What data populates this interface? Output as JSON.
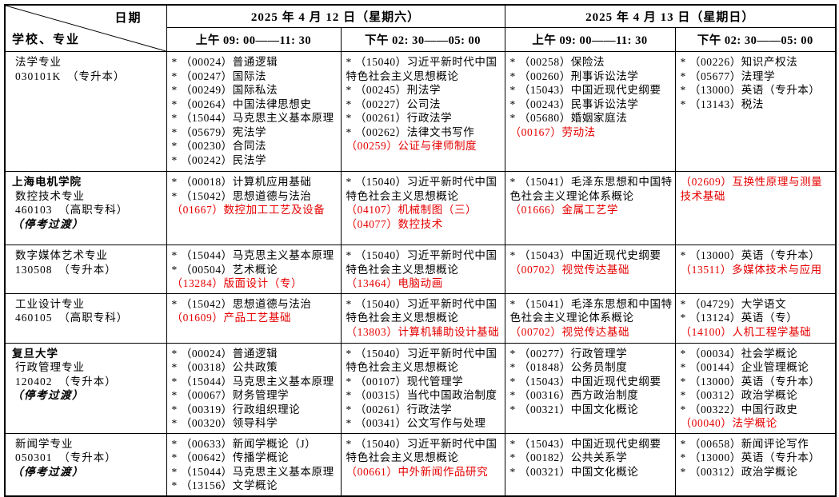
{
  "colors": {
    "accent_red": "#e60000",
    "border": "#000000"
  },
  "header": {
    "corner": {
      "date_label": "日期",
      "school_label": "学校、专业"
    },
    "days": [
      {
        "date": "2025 年 4 月 12 日（星期六）",
        "sessions": [
          "上午 09: 00——11: 30",
          "下午 02: 30——05: 00"
        ]
      },
      {
        "date": "2025 年 4 月 13 日（星期日）",
        "sessions": [
          "上午 09: 00——11: 30",
          "下午 02: 30——05: 00"
        ]
      }
    ]
  },
  "rows": [
    {
      "school_lines": [
        {
          "text": "法学专业",
          "bold": false,
          "em": false,
          "ind": true
        },
        {
          "text": "030101K　（专升本）",
          "bold": false,
          "em": false,
          "ind": true
        }
      ],
      "cells": [
        [
          {
            "star": true,
            "code": "00024",
            "name": "普通逻辑",
            "red": false
          },
          {
            "star": true,
            "code": "00247",
            "name": "国际法",
            "red": false
          },
          {
            "star": true,
            "code": "00249",
            "name": "国际私法",
            "red": false
          },
          {
            "star": true,
            "code": "00264",
            "name": "中国法律思想史",
            "red": false
          },
          {
            "star": true,
            "code": "15044",
            "name": "马克思主义基本原理",
            "red": false
          },
          {
            "star": true,
            "code": "05679",
            "name": "宪法学",
            "red": false
          },
          {
            "star": true,
            "code": "00230",
            "name": "合同法",
            "red": false
          },
          {
            "star": true,
            "code": "00242",
            "name": "民法学",
            "red": false
          }
        ],
        [
          {
            "star": true,
            "code": "15040",
            "name": "习近平新时代中国特色社会主义思想概论",
            "red": false
          },
          {
            "star": true,
            "code": "00245",
            "name": "刑法学",
            "red": false
          },
          {
            "star": true,
            "code": "00227",
            "name": "公司法",
            "red": false
          },
          {
            "star": true,
            "code": "00261",
            "name": "行政法学",
            "red": false
          },
          {
            "star": true,
            "code": "00262",
            "name": "法律文书写作",
            "red": false
          },
          {
            "star": false,
            "code": "00259",
            "name": "公证与律师制度",
            "red": true
          }
        ],
        [
          {
            "star": true,
            "code": "00258",
            "name": "保险法",
            "red": false
          },
          {
            "star": true,
            "code": "00260",
            "name": "刑事诉讼法学",
            "red": false
          },
          {
            "star": true,
            "code": "15043",
            "name": "中国近现代史纲要",
            "red": false
          },
          {
            "star": true,
            "code": "00243",
            "name": "民事诉讼法学",
            "red": false
          },
          {
            "star": true,
            "code": "05680",
            "name": "婚姻家庭法",
            "red": false
          },
          {
            "star": false,
            "code": "00167",
            "name": "劳动法",
            "red": true
          }
        ],
        [
          {
            "star": true,
            "code": "00226",
            "name": "知识产权法",
            "red": false
          },
          {
            "star": true,
            "code": "05677",
            "name": "法理学",
            "red": false
          },
          {
            "star": true,
            "code": "13000",
            "name": "英语（专升本）",
            "red": false
          },
          {
            "star": true,
            "code": "13143",
            "name": "税法",
            "red": false
          }
        ]
      ]
    },
    {
      "school_lines": [
        {
          "text": "上海电机学院",
          "bold": true,
          "em": false,
          "ind": false
        },
        {
          "text": "数控技术专业",
          "bold": false,
          "em": false,
          "ind": true
        },
        {
          "text": "460103　（高职专科）",
          "bold": false,
          "em": false,
          "ind": true
        },
        {
          "text": "（停考过渡）",
          "bold": false,
          "em": true,
          "ind": false
        }
      ],
      "cells": [
        [
          {
            "star": true,
            "code": "00018",
            "name": "计算机应用基础",
            "red": false
          },
          {
            "star": true,
            "code": "15042",
            "name": "思想道德与法治",
            "red": false
          },
          {
            "star": false,
            "code": "01667",
            "name": "数控加工工艺及设备",
            "red": true
          }
        ],
        [
          {
            "star": true,
            "code": "15040",
            "name": "习近平新时代中国特色社会主义思想概论",
            "red": false
          },
          {
            "star": false,
            "code": "04107",
            "name": "机械制图（三）",
            "red": true
          },
          {
            "star": false,
            "code": "04077",
            "name": "数控技术",
            "red": true
          }
        ],
        [
          {
            "star": true,
            "code": "15041",
            "name": "毛泽东思想和中国特色社会主义理论体系概论",
            "red": false
          },
          {
            "star": false,
            "code": "01666",
            "name": "金属工艺学",
            "red": true
          }
        ],
        [
          {
            "star": false,
            "code": "02609",
            "name": "互换性原理与测量技术基础",
            "red": true
          }
        ]
      ]
    },
    {
      "school_lines": [
        {
          "text": "数字媒体艺术专业",
          "bold": false,
          "em": false,
          "ind": true
        },
        {
          "text": "130508　（专升本）",
          "bold": false,
          "em": false,
          "ind": true
        }
      ],
      "cells": [
        [
          {
            "star": true,
            "code": "15044",
            "name": "马克思主义基本原理",
            "red": false
          },
          {
            "star": true,
            "code": "00504",
            "name": "艺术概论",
            "red": false
          },
          {
            "star": false,
            "code": "13284",
            "name": "版面设计（专）",
            "red": true
          }
        ],
        [
          {
            "star": true,
            "code": "15040",
            "name": "习近平新时代中国特色社会主义思想概论",
            "red": false
          },
          {
            "star": false,
            "code": "13464",
            "name": "电脑动画",
            "red": true
          }
        ],
        [
          {
            "star": true,
            "code": "15043",
            "name": "中国近现代史纲要",
            "red": false
          },
          {
            "star": false,
            "code": "00702",
            "name": "视觉传达基础",
            "red": true
          }
        ],
        [
          {
            "star": true,
            "code": "13000",
            "name": "英语（专升本）",
            "red": false
          },
          {
            "star": false,
            "code": "13511",
            "name": "多媒体技术与应用",
            "red": true
          }
        ]
      ]
    },
    {
      "school_lines": [
        {
          "text": "工业设计专业",
          "bold": false,
          "em": false,
          "ind": true
        },
        {
          "text": "460105　（高职专科）",
          "bold": false,
          "em": false,
          "ind": true
        }
      ],
      "cells": [
        [
          {
            "star": true,
            "code": "15042",
            "name": "思想道德与法治",
            "red": false
          },
          {
            "star": false,
            "code": "01609",
            "name": "产品工艺基础",
            "red": true
          }
        ],
        [
          {
            "star": true,
            "code": "15040",
            "name": "习近平新时代中国特色社会主义思想概论",
            "red": false
          },
          {
            "star": false,
            "code": "13803",
            "name": "计算机辅助设计基础",
            "red": true
          }
        ],
        [
          {
            "star": true,
            "code": "15041",
            "name": "毛泽东思想和中国特色社会主义理论体系概论",
            "red": false
          },
          {
            "star": false,
            "code": "00702",
            "name": "视觉传达基础",
            "red": true
          }
        ],
        [
          {
            "star": true,
            "code": "04729",
            "name": "大学语文",
            "red": false
          },
          {
            "star": true,
            "code": "13124",
            "name": "英语（专）",
            "red": false
          },
          {
            "star": false,
            "code": "14100",
            "name": "人机工程学基础",
            "red": true
          }
        ]
      ]
    },
    {
      "school_lines": [
        {
          "text": "复旦大学",
          "bold": true,
          "em": false,
          "ind": false
        },
        {
          "text": "行政管理专业",
          "bold": false,
          "em": false,
          "ind": true
        },
        {
          "text": "120402　（专升本）",
          "bold": false,
          "em": false,
          "ind": true
        },
        {
          "text": "（停考过渡）",
          "bold": false,
          "em": true,
          "ind": false
        }
      ],
      "cells": [
        [
          {
            "star": true,
            "code": "00024",
            "name": "普通逻辑",
            "red": false
          },
          {
            "star": true,
            "code": "00318",
            "name": "公共政策",
            "red": false
          },
          {
            "star": true,
            "code": "15044",
            "name": "马克思主义基本原理",
            "red": false
          },
          {
            "star": true,
            "code": "00067",
            "name": "财务管理学",
            "red": false
          },
          {
            "star": true,
            "code": "00319",
            "name": "行政组织理论",
            "red": false
          },
          {
            "star": true,
            "code": "00320",
            "name": "领导科学",
            "red": false
          }
        ],
        [
          {
            "star": true,
            "code": "15040",
            "name": "习近平新时代中国特色社会主义思想概论",
            "red": false
          },
          {
            "star": true,
            "code": "00107",
            "name": "现代管理学",
            "red": false
          },
          {
            "star": true,
            "code": "00315",
            "name": "当代中国政治制度",
            "red": false
          },
          {
            "star": true,
            "code": "00261",
            "name": "行政法学",
            "red": false
          },
          {
            "star": true,
            "code": "00341",
            "name": "公文写作与处理",
            "red": false
          }
        ],
        [
          {
            "star": true,
            "code": "00277",
            "name": "行政管理学",
            "red": false
          },
          {
            "star": true,
            "code": "01848",
            "name": "公务员制度",
            "red": false
          },
          {
            "star": true,
            "code": "15043",
            "name": "中国近现代史纲要",
            "red": false
          },
          {
            "star": true,
            "code": "00316",
            "name": "西方政治制度",
            "red": false
          },
          {
            "star": true,
            "code": "00321",
            "name": "中国文化概论",
            "red": false
          }
        ],
        [
          {
            "star": true,
            "code": "00034",
            "name": "社会学概论",
            "red": false
          },
          {
            "star": true,
            "code": "00144",
            "name": "企业管理概论",
            "red": false
          },
          {
            "star": true,
            "code": "13000",
            "name": "英语（专升本）",
            "red": false
          },
          {
            "star": true,
            "code": "00312",
            "name": "政治学概论",
            "red": false
          },
          {
            "star": true,
            "code": "00322",
            "name": "中国行政史",
            "red": false
          },
          {
            "star": false,
            "code": "00040",
            "name": "法学概论",
            "red": true
          }
        ]
      ]
    },
    {
      "school_lines": [
        {
          "text": "新闻学专业",
          "bold": false,
          "em": false,
          "ind": true
        },
        {
          "text": "050301　（专升本）",
          "bold": false,
          "em": false,
          "ind": true
        },
        {
          "text": "（停考过渡）",
          "bold": false,
          "em": true,
          "ind": false
        }
      ],
      "cells": [
        [
          {
            "star": true,
            "code": "00633",
            "name": "新闻学概论（J）",
            "red": false
          },
          {
            "star": true,
            "code": "00642",
            "name": "传播学概论",
            "red": false
          },
          {
            "star": true,
            "code": "15044",
            "name": "马克思主义基本原理",
            "red": false
          },
          {
            "star": true,
            "code": "13156",
            "name": "文学概论",
            "red": false
          }
        ],
        [
          {
            "star": true,
            "code": "15040",
            "name": "习近平新时代中国特色社会主义思想概论",
            "red": false
          },
          {
            "star": false,
            "code": "00661",
            "name": "中外新闻作品研究",
            "red": true
          }
        ],
        [
          {
            "star": true,
            "code": "15043",
            "name": "中国近现代史纲要",
            "red": false
          },
          {
            "star": true,
            "code": "00182",
            "name": "公共关系学",
            "red": false
          },
          {
            "star": true,
            "code": "00321",
            "name": "中国文化概论",
            "red": false
          }
        ],
        [
          {
            "star": true,
            "code": "00658",
            "name": "新闻评论写作",
            "red": false
          },
          {
            "star": true,
            "code": "13000",
            "name": "英语（专升本）",
            "red": false
          },
          {
            "star": true,
            "code": "00312",
            "name": "政治学概论",
            "red": false
          }
        ]
      ]
    }
  ]
}
